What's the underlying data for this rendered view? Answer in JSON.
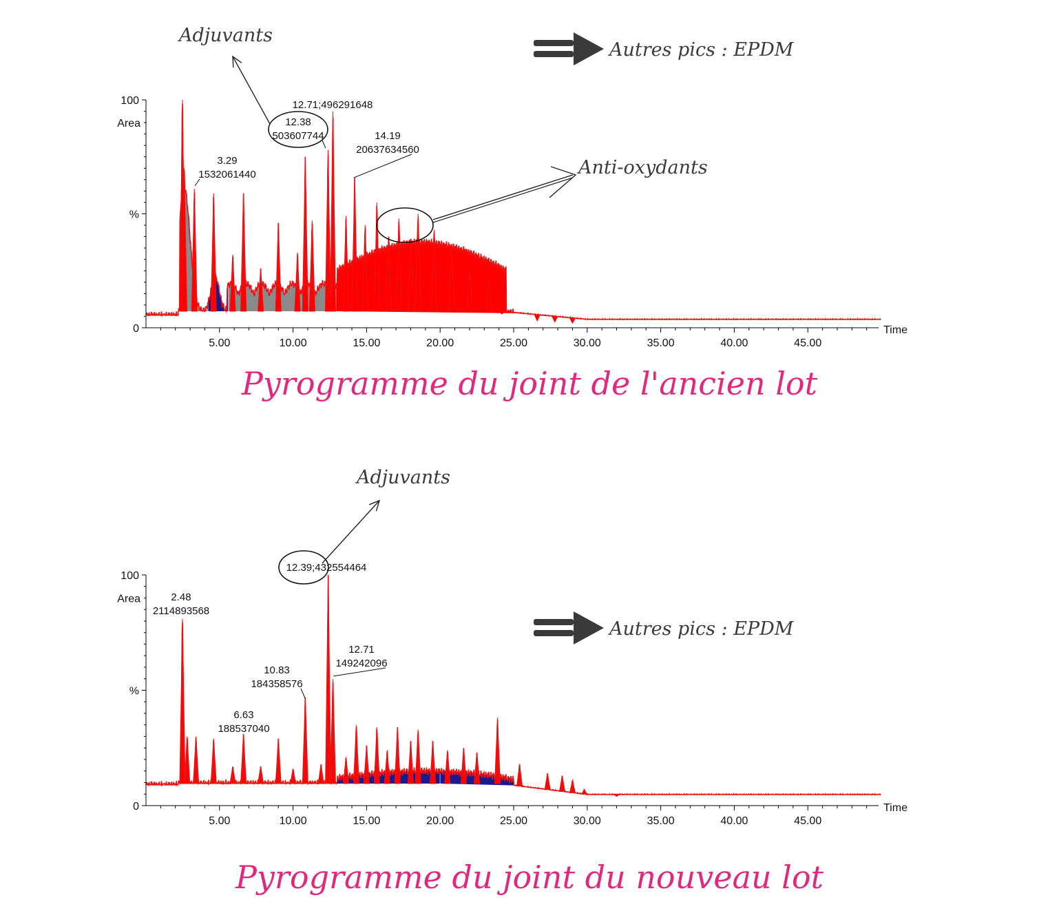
{
  "colors": {
    "caption": "#e0287f",
    "trace": "#ee1111",
    "fill_red": "#ff0000",
    "fill_gray": "#8a8a8a",
    "fill_navy": "#1a1a8a",
    "area_label": "#dd2222",
    "annotation": "#3b3b3b"
  },
  "icons": [
    "double-arrow-icon",
    "annotation-arrow-icon",
    "annotation-circle-icon"
  ],
  "chart_data": [
    {
      "type": "area",
      "caption": "Pyrogramme du joint de l'ancien lot",
      "xlabel": "Time",
      "ylabel": "Area",
      "xlim": [
        0,
        50
      ],
      "ylim": [
        0,
        100
      ],
      "ytick_labels": [
        "100",
        "%",
        "0"
      ],
      "xticks": [
        "5.00",
        "10.00",
        "15.00",
        "20.00",
        "25.00",
        "30.00",
        "35.00",
        "40.00",
        "45.00"
      ],
      "peaks": [
        {
          "x": 2.48,
          "y": 100
        },
        {
          "x": 2.6,
          "y": 70
        },
        {
          "x": 3.29,
          "y": 61
        },
        {
          "x": 4.6,
          "y": 59
        },
        {
          "x": 5.9,
          "y": 32
        },
        {
          "x": 6.63,
          "y": 59
        },
        {
          "x": 7.8,
          "y": 26
        },
        {
          "x": 9.0,
          "y": 46
        },
        {
          "x": 10.3,
          "y": 33
        },
        {
          "x": 10.83,
          "y": 75
        },
        {
          "x": 11.3,
          "y": 47
        },
        {
          "x": 12.38,
          "y": 78
        },
        {
          "x": 12.71,
          "y": 95
        },
        {
          "x": 13.6,
          "y": 49
        },
        {
          "x": 14.19,
          "y": 66
        },
        {
          "x": 14.9,
          "y": 45
        },
        {
          "x": 15.7,
          "y": 55
        },
        {
          "x": 16.5,
          "y": 40
        },
        {
          "x": 17.2,
          "y": 48
        },
        {
          "x": 18.0,
          "y": 39
        },
        {
          "x": 18.5,
          "y": 50
        },
        {
          "x": 19.6,
          "y": 43
        },
        {
          "x": 20.8,
          "y": 36
        },
        {
          "x": 22.0,
          "y": 26
        },
        {
          "x": 23.3,
          "y": 21
        },
        {
          "x": 24.2,
          "y": 6
        },
        {
          "x": 26.6,
          "y": 3
        },
        {
          "x": 27.8,
          "y": 2.5
        },
        {
          "x": 29.0,
          "y": 2
        }
      ],
      "peak_labels": [
        {
          "time": "3.29",
          "area": "1532061440"
        },
        {
          "time": "12.38",
          "area": "503607744"
        },
        {
          "time": "12.71",
          "area": "496291648",
          "inline": true
        },
        {
          "time": "14.19",
          "area": "20637634560"
        }
      ],
      "annotations": [
        {
          "text": "Adjuvants",
          "target": "12.38"
        },
        {
          "text": "Anti-oxydants",
          "target": "17.2–18.5"
        },
        {
          "text": "Autres pics  : EPDM"
        }
      ]
    },
    {
      "type": "area",
      "caption": "Pyrogramme du joint du nouveau lot",
      "xlabel": "Time",
      "ylabel": "Area",
      "xlim": [
        0,
        50
      ],
      "ylim": [
        0,
        100
      ],
      "ytick_labels": [
        "100",
        "%",
        "0"
      ],
      "xticks": [
        "5.00",
        "10.00",
        "15.00",
        "20.00",
        "25.00",
        "30.00",
        "35.00",
        "40.00",
        "45.00"
      ],
      "peaks": [
        {
          "x": 2.48,
          "y": 81
        },
        {
          "x": 2.8,
          "y": 30
        },
        {
          "x": 3.4,
          "y": 30
        },
        {
          "x": 4.6,
          "y": 29
        },
        {
          "x": 5.9,
          "y": 17
        },
        {
          "x": 6.63,
          "y": 31
        },
        {
          "x": 7.8,
          "y": 17
        },
        {
          "x": 9.0,
          "y": 29
        },
        {
          "x": 10.0,
          "y": 16
        },
        {
          "x": 10.83,
          "y": 47
        },
        {
          "x": 11.9,
          "y": 18
        },
        {
          "x": 12.39,
          "y": 100
        },
        {
          "x": 12.71,
          "y": 55
        },
        {
          "x": 13.6,
          "y": 21
        },
        {
          "x": 14.3,
          "y": 35
        },
        {
          "x": 15.0,
          "y": 26
        },
        {
          "x": 15.7,
          "y": 34
        },
        {
          "x": 16.4,
          "y": 24
        },
        {
          "x": 17.1,
          "y": 34
        },
        {
          "x": 18.0,
          "y": 28
        },
        {
          "x": 18.5,
          "y": 33
        },
        {
          "x": 19.5,
          "y": 28
        },
        {
          "x": 20.5,
          "y": 24
        },
        {
          "x": 21.6,
          "y": 25
        },
        {
          "x": 22.5,
          "y": 23
        },
        {
          "x": 23.9,
          "y": 38
        },
        {
          "x": 25.4,
          "y": 18
        },
        {
          "x": 27.3,
          "y": 14
        },
        {
          "x": 28.3,
          "y": 13
        },
        {
          "x": 29.0,
          "y": 11
        },
        {
          "x": 29.8,
          "y": 7
        },
        {
          "x": 31.0,
          "y": 5
        },
        {
          "x": 32.0,
          "y": 4
        }
      ],
      "peak_labels": [
        {
          "time": "2.48",
          "area": "2114893568"
        },
        {
          "time": "6.63",
          "area": "188537040"
        },
        {
          "time": "10.83",
          "area": "184358576"
        },
        {
          "time": "12.39",
          "area": "432554464",
          "inline": true
        },
        {
          "time": "12.71",
          "area": "149242096"
        }
      ],
      "annotations": [
        {
          "text": "Adjuvants",
          "target": "12.39"
        },
        {
          "text": "Autres pics  : EPDM"
        }
      ]
    }
  ]
}
